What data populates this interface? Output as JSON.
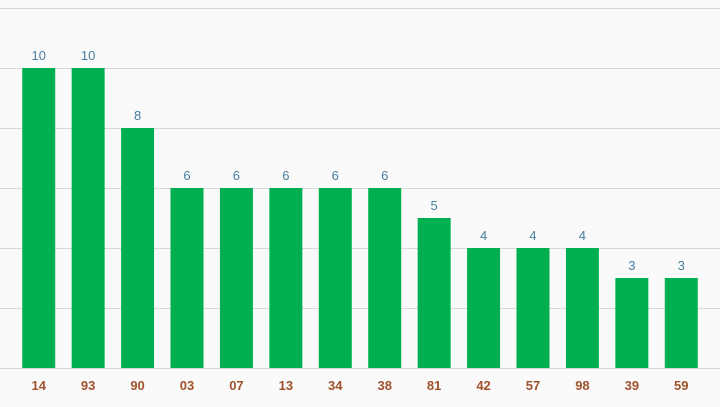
{
  "chart_data": {
    "type": "bar",
    "categories": [
      "14",
      "93",
      "90",
      "03",
      "07",
      "13",
      "34",
      "38",
      "81",
      "42",
      "57",
      "98",
      "39",
      "59"
    ],
    "values": [
      10,
      10,
      8,
      6,
      6,
      6,
      6,
      6,
      5,
      4,
      4,
      4,
      3,
      3
    ],
    "title": "",
    "xlabel": "",
    "ylabel": "",
    "ylim": [
      0,
      12
    ],
    "grid": true,
    "bar_color": "#00b050",
    "value_label_color": "#4a7fa0",
    "category_label_color": "#a0522d",
    "background": "#fafafa"
  }
}
